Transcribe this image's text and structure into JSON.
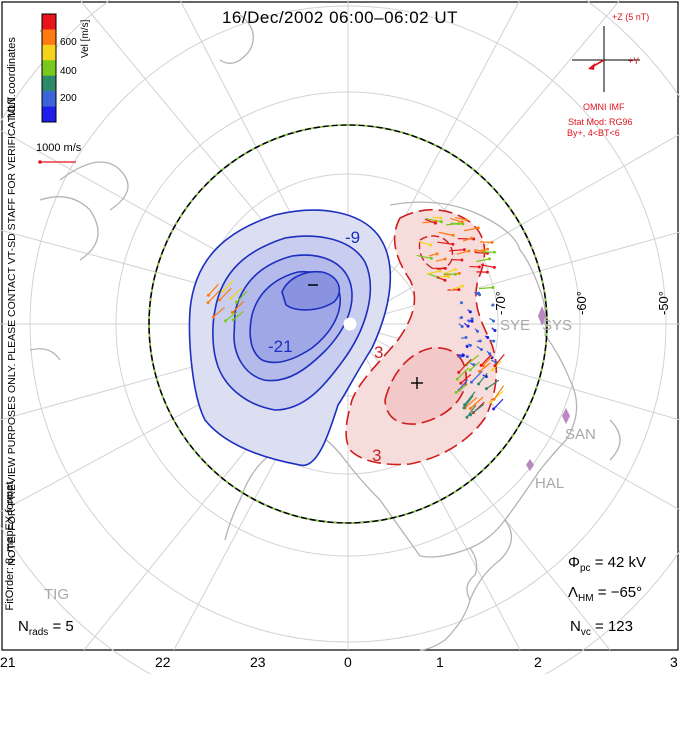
{
  "title": "16/Dec/2002 06:00–06:02 UT",
  "colorbar": {
    "label": "Vel [m/s]",
    "ticks": [
      "600",
      "400",
      "200"
    ],
    "colors": [
      "#e8141c",
      "#ff7a10",
      "#f5d21b",
      "#78c81e",
      "#2c8a6a",
      "#3c64d8",
      "#1e1ee8"
    ]
  },
  "coords_label": "MLT coordinates",
  "ref_vector_label": "1000 m/s",
  "note_lines": [
    "NOTE: FOR PREVIEW PURPOSES ONLY. PLEASE CONTACT VT-SD STAFF FOR VERIFICATION.",
    "FitOrder: 8, mapEX format"
  ],
  "imf": {
    "z_label": "+Z (5 nT)",
    "y_label": "+Y",
    "source": "OMNI IMF",
    "model": "Stat Mod: RG96",
    "condition": "By+, 4<BT<6"
  },
  "contour_labels": {
    "neg_outer": "-9",
    "neg_inner": "-21",
    "pos": "3",
    "pos_outer": "3"
  },
  "latitude_labels": [
    "-70°",
    "-60°",
    "-50°"
  ],
  "stations": [
    "SYE",
    "SYS",
    "SAN",
    "HAL",
    "TIG"
  ],
  "mlt_labels": [
    "21",
    "22",
    "23",
    "0",
    "1",
    "2",
    "3"
  ],
  "stats": {
    "phi_pc": "Φ",
    "phi_pc_sub": "pc",
    "phi_pc_value": "= 42 kV",
    "lambda_hm": "Λ",
    "lambda_hm_sub": "HM",
    "lambda_hm_value": "= −65°",
    "n_rads": "N",
    "n_rads_sub": "rads",
    "n_rads_value": "= 5",
    "n_vc": "N",
    "n_vc_sub": "vc",
    "n_vc_value": "= 123"
  },
  "colors": {
    "negative_fill": "#dcdff2",
    "negative_inner": "#9fa7e6",
    "negative_line": "#1c2fbf",
    "positive_fill": "#f7dcdc",
    "positive_line": "#d01e1e",
    "coastline": "#b4b4b4",
    "grid": "#d2d2d2"
  }
}
